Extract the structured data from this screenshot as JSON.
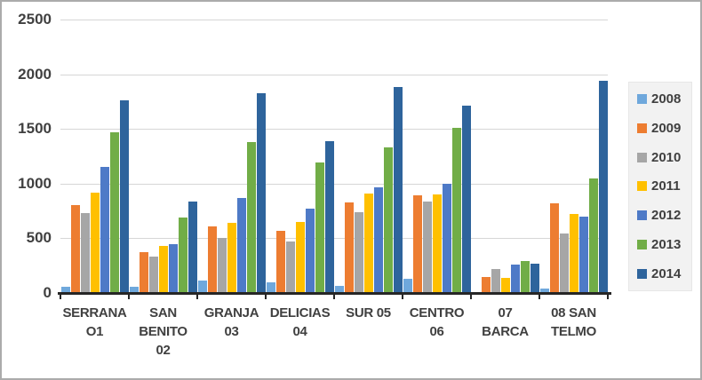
{
  "chart_data": {
    "type": "bar",
    "title": "",
    "xlabel": "",
    "ylabel": "",
    "categories": [
      "SERRANA O1",
      "SAN BENITO 02",
      "GRANJA 03",
      "DELICIAS 04",
      "SUR 05",
      "CENTRO 06",
      "07 BARCA",
      "08 SAN TELMO"
    ],
    "category_label_lines": [
      [
        "SERRANA",
        "O1"
      ],
      [
        "SAN",
        "BENITO",
        "02"
      ],
      [
        "GRANJA",
        "03"
      ],
      [
        "DELICIAS",
        "04"
      ],
      [
        "SUR 05"
      ],
      [
        "CENTRO",
        "06"
      ],
      [
        "07",
        "BARCA"
      ],
      [
        "08 SAN",
        "TELMO"
      ]
    ],
    "series": [
      {
        "name": "2008",
        "color": "#6FA8DC",
        "values": [
          60,
          60,
          110,
          100,
          65,
          130,
          0,
          40
        ]
      },
      {
        "name": "2009",
        "color": "#ED7D31",
        "values": [
          800,
          370,
          610,
          570,
          830,
          890,
          150,
          820
        ]
      },
      {
        "name": "2010",
        "color": "#A6A6A6",
        "values": [
          730,
          330,
          500,
          470,
          740,
          840,
          220,
          540
        ]
      },
      {
        "name": "2011",
        "color": "#FFC000",
        "values": [
          920,
          430,
          640,
          650,
          910,
          900,
          140,
          720
        ]
      },
      {
        "name": "2012",
        "color": "#4E7AC7",
        "values": [
          1150,
          450,
          870,
          770,
          970,
          1000,
          260,
          700
        ]
      },
      {
        "name": "2013",
        "color": "#71AD47",
        "values": [
          1470,
          690,
          1380,
          1190,
          1330,
          1510,
          290,
          1050
        ]
      },
      {
        "name": "2014",
        "color": "#2E649C",
        "values": [
          1760,
          840,
          1830,
          1390,
          1880,
          1710,
          270,
          1940
        ]
      }
    ],
    "ylim": [
      0,
      2500
    ],
    "yticks": [
      0,
      500,
      1000,
      1500,
      2000,
      2500
    ],
    "grid": true,
    "legend_position": "right"
  },
  "colors": {
    "background": "#FFFFFF",
    "frame_border": "#ABABAB",
    "gridline": "#D6D6D6",
    "axis": "#262626",
    "label_text": "#404040",
    "legend_background": "#F2F2F2"
  }
}
